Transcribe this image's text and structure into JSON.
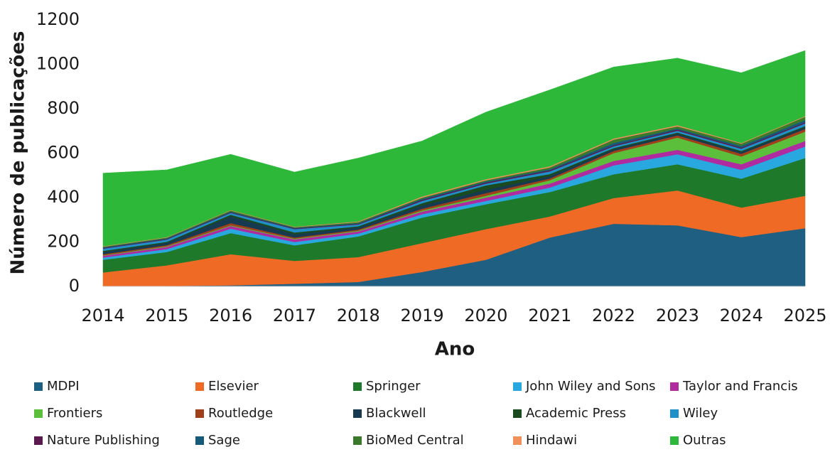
{
  "chart_data": {
    "type": "stacked_area",
    "x_label": "Ano",
    "y_label": "Número de publicações",
    "categories": [
      "2014",
      "2015",
      "2016",
      "2017",
      "2018",
      "2019",
      "2020",
      "2021",
      "2022",
      "2023",
      "2024",
      "2025"
    ],
    "ylim": [
      0,
      1200
    ],
    "yticks": [
      0,
      200,
      400,
      600,
      800,
      1000,
      1200
    ],
    "grid": false,
    "legend": "bottom",
    "series": [
      {
        "name": "MDPI",
        "color": "#1f5f82",
        "values": [
          0,
          2,
          5,
          12,
          20,
          65,
          120,
          220,
          282,
          275,
          222,
          262
        ]
      },
      {
        "name": "Elsevier",
        "color": "#ee6a25",
        "values": [
          63,
          93,
          140,
          103,
          112,
          130,
          138,
          95,
          116,
          157,
          133,
          146
        ]
      },
      {
        "name": "Springer",
        "color": "#1e7a2a",
        "values": [
          57,
          60,
          95,
          70,
          93,
          115,
          112,
          110,
          107,
          118,
          130,
          170
        ]
      },
      {
        "name": "John Wiley and Sons",
        "color": "#29a8e0",
        "values": [
          10,
          13,
          20,
          15,
          13,
          15,
          15,
          20,
          40,
          45,
          40,
          52
        ]
      },
      {
        "name": "Taylor and Francis",
        "color": "#b02aa0",
        "values": [
          8,
          10,
          12,
          12,
          10,
          12,
          15,
          18,
          20,
          20,
          25,
          25
        ]
      },
      {
        "name": "Frontiers",
        "color": "#5cbf3c",
        "values": [
          2,
          3,
          3,
          3,
          3,
          5,
          8,
          15,
          35,
          55,
          35,
          42
        ]
      },
      {
        "name": "Routledge",
        "color": "#a0401a",
        "values": [
          5,
          5,
          10,
          5,
          5,
          8,
          12,
          8,
          10,
          10,
          12,
          12
        ]
      },
      {
        "name": "Blackwell",
        "color": "#163a50",
        "values": [
          10,
          10,
          30,
          15,
          10,
          15,
          15,
          10,
          8,
          8,
          8,
          8
        ]
      },
      {
        "name": "Academic Press",
        "color": "#1a4a20",
        "values": [
          5,
          5,
          8,
          8,
          5,
          10,
          20,
          10,
          5,
          5,
          5,
          5
        ]
      },
      {
        "name": "Wiley",
        "color": "#2090c8",
        "values": [
          10,
          10,
          8,
          15,
          8,
          10,
          8,
          12,
          8,
          8,
          10,
          12
        ]
      },
      {
        "name": "Nature Publishing",
        "color": "#5a1a50",
        "values": [
          3,
          3,
          3,
          3,
          3,
          5,
          5,
          5,
          5,
          5,
          5,
          5
        ]
      },
      {
        "name": "Sage",
        "color": "#155a7a",
        "values": [
          3,
          3,
          3,
          3,
          3,
          5,
          5,
          5,
          10,
          5,
          8,
          10
        ]
      },
      {
        "name": "BioMed Central",
        "color": "#3a7a2a",
        "values": [
          3,
          3,
          5,
          3,
          5,
          5,
          5,
          8,
          15,
          10,
          10,
          15
        ]
      },
      {
        "name": "Hindawi",
        "color": "#f0905a",
        "values": [
          2,
          2,
          2,
          2,
          3,
          5,
          5,
          5,
          5,
          5,
          3,
          3
        ]
      },
      {
        "name": "Outras",
        "color": "#2db83a",
        "values": [
          329,
          303,
          251,
          246,
          285,
          250,
          302,
          344,
          322,
          302,
          316,
          295
        ]
      }
    ]
  }
}
